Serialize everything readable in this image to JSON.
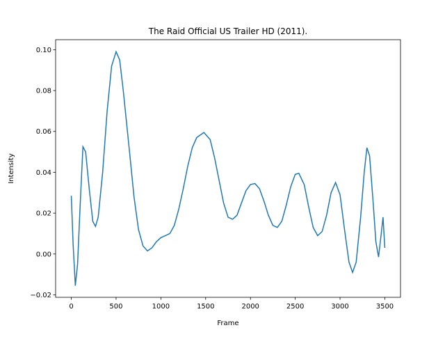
{
  "chart_data": {
    "type": "line",
    "title": "The Raid  Official US Trailer HD (2011).",
    "x_label": "Frame",
    "y_label": "Intensity",
    "x": [
      0,
      20,
      45,
      70,
      100,
      130,
      160,
      200,
      240,
      270,
      300,
      350,
      400,
      450,
      500,
      540,
      580,
      650,
      700,
      750,
      800,
      850,
      900,
      950,
      1000,
      1050,
      1100,
      1150,
      1200,
      1250,
      1300,
      1350,
      1400,
      1480,
      1550,
      1600,
      1650,
      1700,
      1750,
      1800,
      1850,
      1900,
      1950,
      2000,
      2050,
      2100,
      2150,
      2200,
      2250,
      2300,
      2350,
      2400,
      2450,
      2500,
      2540,
      2600,
      2650,
      2700,
      2750,
      2800,
      2850,
      2900,
      2950,
      3000,
      3050,
      3100,
      3140,
      3180,
      3230,
      3270,
      3300,
      3330,
      3370,
      3400,
      3430,
      3460,
      3480,
      3500
    ],
    "series": [
      {
        "name": "Intensity",
        "color": "#1f77b4",
        "values": [
          0.0285,
          0.005,
          -0.0155,
          -0.005,
          0.025,
          0.0525,
          0.05,
          0.032,
          0.016,
          0.0135,
          0.018,
          0.04,
          0.07,
          0.092,
          0.099,
          0.095,
          0.08,
          0.05,
          0.028,
          0.012,
          0.004,
          0.0015,
          0.003,
          0.006,
          0.008,
          0.009,
          0.01,
          0.014,
          0.022,
          0.032,
          0.043,
          0.052,
          0.057,
          0.0595,
          0.056,
          0.047,
          0.036,
          0.025,
          0.018,
          0.017,
          0.019,
          0.025,
          0.031,
          0.034,
          0.0345,
          0.032,
          0.026,
          0.019,
          0.014,
          0.013,
          0.016,
          0.024,
          0.033,
          0.039,
          0.0395,
          0.034,
          0.023,
          0.013,
          0.009,
          0.011,
          0.019,
          0.03,
          0.035,
          0.029,
          0.012,
          -0.004,
          -0.009,
          -0.004,
          0.018,
          0.04,
          0.052,
          0.048,
          0.025,
          0.006,
          -0.0015,
          0.01,
          0.018,
          0.003
        ]
      }
    ],
    "xlim": [
      -175,
      3675
    ],
    "xticks": [
      0,
      500,
      1000,
      1500,
      2000,
      2500,
      3000,
      3500
    ],
    "ylim": [
      -0.0212,
      0.1049
    ],
    "yticks": [
      {
        "value": -0.02,
        "label": "−0.02"
      },
      {
        "value": 0,
        "label": "0.00"
      },
      {
        "value": 0.02,
        "label": "0.02"
      },
      {
        "value": 0.04,
        "label": "0.04"
      },
      {
        "value": 0.06,
        "label": "0.06"
      },
      {
        "value": 0.08,
        "label": "0.08"
      },
      {
        "value": 0.1,
        "label": "0.10"
      }
    ]
  }
}
